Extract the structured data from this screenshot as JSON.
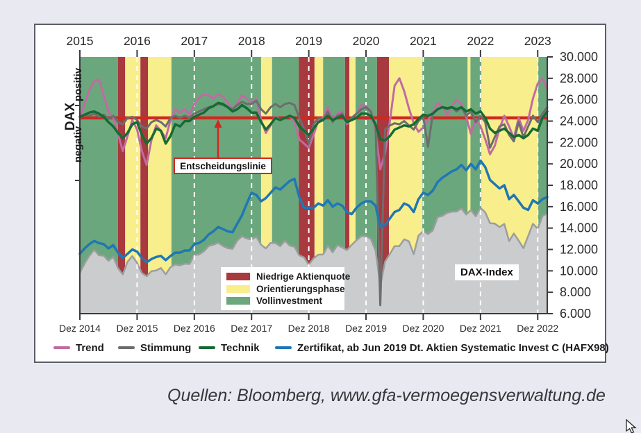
{
  "panel": {
    "background": "#ffffff",
    "border_color": "#5b5c64",
    "page_background": "#e9eaf1"
  },
  "caption": {
    "text": "Quellen: Bloomberg, www.gfa-vermoegensverwaltung.de"
  },
  "annotations": {
    "decision_label": "Entscheidungslinie",
    "dax_index_label": "DAX-Index"
  },
  "legend_bands": {
    "items": [
      {
        "label": "Niedrige Aktienquote",
        "color": "#a8393f"
      },
      {
        "label": "Orientierungsphase",
        "color": "#f8ee8b"
      },
      {
        "label": "Vollinvestment",
        "color": "#6ba77c"
      }
    ]
  },
  "legend_lines": {
    "items": [
      {
        "label": "Trend",
        "color": "#c06ba3"
      },
      {
        "label": "Stimmung",
        "color": "#6d6d6d"
      },
      {
        "label": "Technik",
        "color": "#156b33"
      },
      {
        "label": "Zertifikat, ab Jun 2019 Dt. Aktien Systematic Invest C (HAFX98)",
        "color": "#1f77b4"
      }
    ]
  },
  "chart_data": {
    "type": "line",
    "x_index": "monthly, 0 = Dez 2014 … 98 = Feb 2023",
    "top_axis_years": [
      "2015",
      "2016",
      "2017",
      "2018",
      "2019",
      "2020",
      "2021",
      "2022",
      "2023"
    ],
    "bottom_axis_labels": [
      "Dez 2014",
      "Dez 2015",
      "Dez 2016",
      "Dez 2017",
      "Dez 2018",
      "Dez 2019",
      "Dez 2020",
      "Dez 2021",
      "Dez 2022"
    ],
    "right_axis_labels": [
      "30.000",
      "28.000",
      "26.000",
      "24.000",
      "22.000",
      "20.000",
      "18.000",
      "16.000",
      "14.000",
      "12.000",
      "10.000",
      "8.000",
      "6.000"
    ],
    "ylim": [
      6000,
      30000
    ],
    "y_tick_step": 2000,
    "grid": "white dashed vertical lines at each Dez",
    "legend_position": "inside-bottom-left (phases), below-chart (lines)",
    "left_axis": {
      "title": "DAX",
      "upper": "positiv",
      "lower": "negativ"
    },
    "decision_line": {
      "label": "Entscheidungslinie",
      "value": 24300,
      "color": "#cf2820"
    },
    "phase_colors": {
      "Niedrige Aktienquote": "#a8393f",
      "Orientierungsphase": "#f8ee8b",
      "Vollinvestment": "#6ba77c"
    },
    "phases": [
      {
        "f": 0,
        "t": 8,
        "p": "Vollinvestment"
      },
      {
        "f": 8,
        "t": 9.5,
        "p": "Niedrige Aktienquote"
      },
      {
        "f": 9.5,
        "t": 12.7,
        "p": "Orientierungsphase"
      },
      {
        "f": 12.7,
        "t": 14.3,
        "p": "Niedrige Aktienquote"
      },
      {
        "f": 14.3,
        "t": 19.2,
        "p": "Orientierungsphase"
      },
      {
        "f": 19.2,
        "t": 38,
        "p": "Vollinvestment"
      },
      {
        "f": 38,
        "t": 40.3,
        "p": "Orientierungsphase"
      },
      {
        "f": 40.3,
        "t": 45.9,
        "p": "Vollinvestment"
      },
      {
        "f": 45.9,
        "t": 49.2,
        "p": "Niedrige Aktienquote"
      },
      {
        "f": 49.2,
        "t": 51,
        "p": "Orientierungsphase"
      },
      {
        "f": 51,
        "t": 55.6,
        "p": "Vollinvestment"
      },
      {
        "f": 55.6,
        "t": 56.5,
        "p": "Niedrige Aktienquote"
      },
      {
        "f": 56.5,
        "t": 57.8,
        "p": "Orientierungsphase"
      },
      {
        "f": 57.8,
        "t": 62.3,
        "p": "Vollinvestment"
      },
      {
        "f": 62.3,
        "t": 64.8,
        "p": "Niedrige Aktienquote"
      },
      {
        "f": 64.8,
        "t": 71.8,
        "p": "Orientierungsphase"
      },
      {
        "f": 71.8,
        "t": 81.3,
        "p": "Vollinvestment"
      },
      {
        "f": 81.3,
        "t": 81.9,
        "p": "Orientierungsphase"
      },
      {
        "f": 81.9,
        "t": 84.2,
        "p": "Vollinvestment"
      },
      {
        "f": 84.2,
        "t": 96.1,
        "p": "Orientierungsphase"
      },
      {
        "f": 96.1,
        "t": 98,
        "p": "Vollinvestment"
      }
    ],
    "area": {
      "name": "DAX-Index",
      "fill": "#cbcccd",
      "stroke": "#9c9d9e",
      "unit": 1,
      "values": [
        9806,
        10694,
        11402,
        11966,
        11454,
        11414,
        10945,
        11309,
        10259,
        9660,
        10850,
        11382,
        10743,
        9798,
        9495,
        9966,
        10039,
        10263,
        9680,
        10337,
        10593,
        10511,
        10665,
        10640,
        11481,
        11535,
        11834,
        12313,
        12438,
        12615,
        12325,
        12118,
        12056,
        12829,
        13230,
        13024,
        12918,
        13189,
        12436,
        12097,
        12612,
        12604,
        12306,
        12806,
        12364,
        12247,
        11447,
        11257,
        10559,
        11173,
        11516,
        11526,
        12344,
        11727,
        12399,
        12189,
        11939,
        12428,
        12867,
        13236,
        13249,
        12982,
        11890,
        8600,
        10862,
        11587,
        12311,
        12313,
        12945,
        12761,
        11556,
        13291,
        13719,
        13433,
        13786,
        15008,
        15136,
        15421,
        15531,
        15544,
        15835,
        15261,
        15689,
        15100,
        15885,
        15471,
        14461,
        14415,
        14098,
        14388,
        12784,
        13484,
        12835,
        12114,
        13254,
        14397,
        13924,
        15128,
        15365
      ]
    },
    "series": [
      {
        "name": "Trend",
        "key": "trend",
        "color": "#c06ba3",
        "width": 3,
        "unit": 1000,
        "values": [
          24.3,
          25.6,
          26.9,
          27.7,
          27.9,
          26.4,
          24.9,
          24.3,
          22.8,
          21.2,
          22.6,
          24.1,
          23.2,
          21.2,
          19.9,
          22.2,
          23.6,
          23.1,
          22.4,
          24.1,
          25.1,
          24.8,
          25.1,
          24.6,
          25.6,
          26.2,
          26.5,
          26.4,
          26.1,
          26.5,
          26.3,
          25.7,
          25.1,
          25.7,
          26.4,
          26.1,
          25.7,
          26.1,
          24.1,
          22.9,
          23.6,
          24.5,
          24.1,
          24.3,
          24.5,
          23.9,
          22.3,
          21.9,
          21.5,
          22.7,
          24.1,
          24.3,
          25.3,
          24.1,
          24.7,
          24.9,
          23.7,
          24.3,
          24.7,
          25.5,
          25.4,
          25.0,
          23.0,
          19.5,
          21.0,
          24.0,
          27.3,
          28.0,
          26.8,
          25.2,
          23.8,
          23.0,
          23.4,
          24.1,
          24.8,
          25.7,
          25.3,
          24.6,
          25.4,
          26.0,
          25.6,
          24.4,
          22.8,
          24.2,
          23.5,
          22.3,
          20.9,
          21.7,
          23.3,
          24.5,
          23.5,
          22.4,
          24.3,
          23.1,
          24.1,
          26.1,
          27.5,
          28.0,
          27.0
        ]
      },
      {
        "name": "Stimmung",
        "key": "stimmung",
        "color": "#6d6d6d",
        "width": 3,
        "unit": 1000,
        "values": [
          24.4,
          24.6,
          24.5,
          24.7,
          24.4,
          24.6,
          24.2,
          24.5,
          23.9,
          23.7,
          24.3,
          24.4,
          24.1,
          23.5,
          23.3,
          23.9,
          24.1,
          23.9,
          23.5,
          24.3,
          24.5,
          24.3,
          24.5,
          24.3,
          24.7,
          24.9,
          25.1,
          25.3,
          25.4,
          25.6,
          25.5,
          25.3,
          25.1,
          25.5,
          25.8,
          25.6,
          25.6,
          25.9,
          25.1,
          24.7,
          25.3,
          25.6,
          25.3,
          25.6,
          25.7,
          25.5,
          24.3,
          23.3,
          21.9,
          23.7,
          24.3,
          24.1,
          24.9,
          23.9,
          24.5,
          24.7,
          23.9,
          24.3,
          24.7,
          25.1,
          25.3,
          24.9,
          23.5,
          6.8,
          23.2,
          23.6,
          23.8,
          23.7,
          24.0,
          23.6,
          23.2,
          24.0,
          24.4,
          21.6,
          24.7,
          25.1,
          25.3,
          25.1,
          25.3,
          24.9,
          25.3,
          24.5,
          24.9,
          23.9,
          24.5,
          23.9,
          21.5,
          22.5,
          23.5,
          23.7,
          22.7,
          22.1,
          23.9,
          22.5,
          23.5,
          24.5,
          23.9,
          24.7,
          25.3
        ]
      },
      {
        "name": "Technik",
        "key": "technik",
        "color": "#156b33",
        "width": 3.5,
        "unit": 1000,
        "values": [
          24.4,
          24.6,
          24.8,
          24.9,
          24.7,
          24.4,
          23.9,
          23.5,
          22.9,
          22.4,
          22.9,
          23.7,
          23.9,
          22.7,
          21.9,
          22.4,
          23.3,
          23.1,
          21.9,
          22.6,
          23.7,
          23.5,
          24.0,
          24.0,
          24.4,
          24.6,
          24.8,
          25.2,
          25.4,
          25.7,
          25.6,
          25.3,
          24.9,
          25.1,
          25.5,
          25.2,
          24.8,
          24.8,
          23.9,
          23.2,
          23.7,
          24.3,
          24.1,
          24.3,
          24.5,
          24.3,
          23.5,
          23.1,
          22.7,
          23.3,
          23.9,
          24.1,
          24.5,
          24.1,
          24.3,
          24.5,
          23.9,
          24.1,
          24.3,
          24.7,
          24.7,
          24.5,
          23.7,
          22.3,
          22.2,
          22.6,
          23.2,
          23.4,
          23.6,
          23.5,
          23.7,
          24.2,
          24.6,
          24.5,
          24.7,
          25.1,
          25.3,
          25.2,
          25.3,
          25.1,
          25.3,
          24.9,
          25.1,
          24.7,
          24.9,
          24.3,
          23.3,
          22.9,
          23.1,
          23.3,
          22.9,
          22.5,
          22.7,
          22.4,
          22.7,
          23.3,
          23.1,
          24.3,
          24.9
        ]
      },
      {
        "name": "Zertifikat, ab Jun 2019 Dt. Aktien Systematic Invest C (HAFX98)",
        "key": "zertifikat",
        "color": "#1f77b4",
        "width": 3.5,
        "unit": 1,
        "values": [
          11600,
          12100,
          12500,
          12800,
          12600,
          12500,
          12100,
          12400,
          11700,
          11200,
          11600,
          12000,
          11800,
          11200,
          10800,
          11100,
          11300,
          11400,
          11000,
          11400,
          11700,
          11700,
          11900,
          11900,
          12500,
          12600,
          12900,
          13400,
          13700,
          14100,
          13900,
          13700,
          13600,
          14400,
          15200,
          16300,
          17300,
          17100,
          16500,
          16800,
          17300,
          17800,
          17600,
          18000,
          18400,
          18600,
          16900,
          15900,
          15900,
          15900,
          16300,
          16100,
          16600,
          16000,
          16300,
          16100,
          15500,
          15300,
          15900,
          16300,
          16500,
          16500,
          16100,
          14100,
          14300,
          14900,
          15500,
          15700,
          16300,
          16100,
          15500,
          16700,
          17300,
          17100,
          17500,
          18300,
          18700,
          19000,
          19300,
          19500,
          19900,
          19400,
          20000,
          19500,
          20300,
          19700,
          18500,
          18100,
          17700,
          18000,
          16700,
          17100,
          16500,
          15900,
          15700,
          16600,
          16300,
          16700,
          16900
        ]
      }
    ]
  }
}
